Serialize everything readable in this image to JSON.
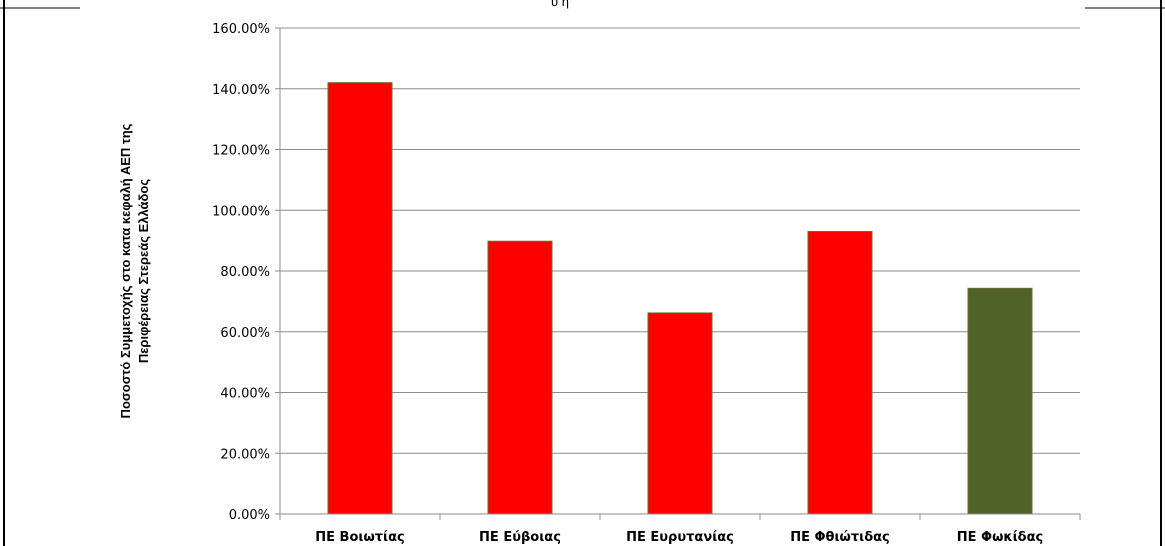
{
  "top_text": "ύ        ή ",
  "chart_data": {
    "type": "bar",
    "categories": [
      "ΠΕ Βοιωτίας",
      "ΠΕ Εύβοιας",
      "ΠΕ Ευρυτανίας",
      "ΠΕ Φθιώτιδας",
      "ΠΕ Φωκίδας"
    ],
    "values": [
      142.0,
      89.8,
      66.2,
      93.0,
      74.3
    ],
    "bar_colors": [
      "#ff0000",
      "#ff0000",
      "#ff0000",
      "#ff0000",
      "#4f6228"
    ],
    "ylabel_lines": [
      "Ποσοστό Συμμετοχής στο κατα κεφαλή ΑΕΠ της",
      "Περιφέρειας Στερεάς Ελλάδος"
    ],
    "ylim": [
      0,
      160
    ],
    "ytick_values": [
      0,
      20,
      40,
      60,
      80,
      100,
      120,
      140,
      160
    ],
    "ytick_labels": [
      "0.00%",
      "20.00%",
      "40.00%",
      "60.00%",
      "80.00%",
      "100.00%",
      "120.00%",
      "140.00%",
      "160.00%"
    ],
    "grid": true,
    "legend": false
  }
}
